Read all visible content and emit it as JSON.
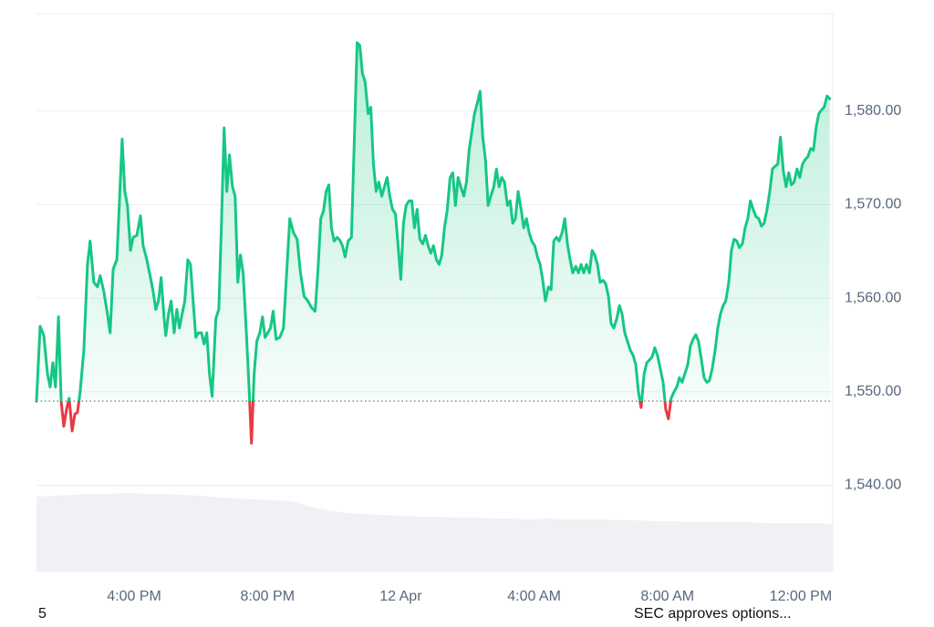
{
  "chart_data": {
    "type": "line",
    "annotations": [
      "5",
      "SEC approves options..."
    ],
    "color": "#16c784",
    "negative_color": "#ea3943",
    "baseline": 1549.0,
    "grid": true,
    "xlim": [
      -10.93,
      12.96
    ],
    "ylim": [
      1530.7,
      1590.4
    ],
    "xticks": [
      {
        "value": -8,
        "label": "4:00 PM"
      },
      {
        "value": -4,
        "label": "8:00 PM"
      },
      {
        "value": 0,
        "label": "12 Apr"
      },
      {
        "value": 4,
        "label": "4:00 AM"
      },
      {
        "value": 8,
        "label": "8:00 AM"
      },
      {
        "value": 12,
        "label": "12:00 PM"
      }
    ],
    "yticks": [
      {
        "value": 1540,
        "label": "1,540.00"
      },
      {
        "value": 1550,
        "label": "1,550.00"
      },
      {
        "value": 1560,
        "label": "1,560.00"
      },
      {
        "value": 1570,
        "label": "1,570.00"
      },
      {
        "value": 1580,
        "label": "1,580.00"
      }
    ],
    "x": [
      -10.93,
      -10.82,
      -10.71,
      -10.6,
      -10.52,
      -10.44,
      -10.36,
      -10.27,
      -10.19,
      -10.11,
      -10.03,
      -9.95,
      -9.86,
      -9.78,
      -9.7,
      -9.62,
      -9.51,
      -9.4,
      -9.32,
      -9.21,
      -9.1,
      -9.02,
      -8.91,
      -8.8,
      -8.72,
      -8.63,
      -8.52,
      -8.44,
      -8.36,
      -8.28,
      -8.2,
      -8.11,
      -8.03,
      -7.92,
      -7.81,
      -7.73,
      -7.62,
      -7.51,
      -7.43,
      -7.35,
      -7.27,
      -7.19,
      -7.1,
      -7.05,
      -6.97,
      -6.89,
      -6.8,
      -6.72,
      -6.64,
      -6.56,
      -6.48,
      -6.39,
      -6.31,
      -6.23,
      -6.15,
      -6.07,
      -5.98,
      -5.9,
      -5.82,
      -5.74,
      -5.66,
      -5.55,
      -5.46,
      -5.38,
      -5.3,
      -5.22,
      -5.14,
      -5.05,
      -4.97,
      -4.89,
      -4.81,
      -4.73,
      -4.64,
      -4.56,
      -4.48,
      -4.4,
      -4.32,
      -4.23,
      -4.15,
      -4.07,
      -3.91,
      -3.83,
      -3.74,
      -3.63,
      -3.52,
      -3.44,
      -3.33,
      -3.22,
      -3.11,
      -3.01,
      -2.9,
      -2.79,
      -2.68,
      -2.57,
      -2.49,
      -2.4,
      -2.32,
      -2.24,
      -2.16,
      -2.08,
      -2.0,
      -1.91,
      -1.83,
      -1.75,
      -1.67,
      -1.58,
      -1.48,
      -1.39,
      -1.31,
      -1.23,
      -1.15,
      -1.07,
      -0.98,
      -0.9,
      -0.82,
      -0.74,
      -0.66,
      -0.57,
      -0.49,
      -0.41,
      -0.33,
      -0.25,
      -0.16,
      -0.08,
      0.0,
      0.08,
      0.16,
      0.25,
      0.33,
      0.41,
      0.49,
      0.57,
      0.66,
      0.74,
      0.82,
      0.9,
      0.98,
      1.07,
      1.15,
      1.23,
      1.31,
      1.39,
      1.48,
      1.56,
      1.64,
      1.72,
      1.8,
      1.89,
      1.97,
      2.05,
      2.13,
      2.21,
      2.3,
      2.38,
      2.46,
      2.54,
      2.62,
      2.7,
      2.79,
      2.87,
      2.95,
      3.03,
      3.11,
      3.2,
      3.28,
      3.36,
      3.44,
      3.52,
      3.61,
      3.69,
      3.77,
      3.85,
      3.93,
      4.02,
      4.1,
      4.18,
      4.26,
      4.34,
      4.43,
      4.51,
      4.59,
      4.67,
      4.75,
      4.84,
      4.92,
      5.0,
      5.08,
      5.16,
      5.25,
      5.33,
      5.41,
      5.49,
      5.57,
      5.66,
      5.74,
      5.82,
      5.9,
      5.98,
      6.07,
      6.15,
      6.23,
      6.31,
      6.39,
      6.48,
      6.56,
      6.64,
      6.72,
      6.8,
      6.89,
      6.97,
      7.05,
      7.13,
      7.21,
      7.3,
      7.38,
      7.46,
      7.54,
      7.62,
      7.7,
      7.79,
      7.87,
      7.95,
      8.03,
      8.11,
      8.2,
      8.28,
      8.36,
      8.44,
      8.52,
      8.61,
      8.69,
      8.77,
      8.85,
      8.93,
      9.02,
      9.1,
      9.18,
      9.26,
      9.34,
      9.43,
      9.51,
      9.59,
      9.67,
      9.75,
      9.84,
      9.92,
      10.0,
      10.08,
      10.16,
      10.25,
      10.33,
      10.41,
      10.49,
      10.57,
      10.66,
      10.74,
      10.82,
      10.9,
      10.98,
      11.07,
      11.15,
      11.23,
      11.31,
      11.39,
      11.48,
      11.56,
      11.64,
      11.72,
      11.8,
      11.89,
      11.97,
      12.05,
      12.13,
      12.21,
      12.3,
      12.38,
      12.46,
      12.54,
      12.62,
      12.7,
      12.79,
      12.87
    ],
    "values": [
      1549.0,
      1557.0,
      1556.0,
      1551.9,
      1550.5,
      1553.1,
      1550.5,
      1558.0,
      1549.0,
      1546.3,
      1548.1,
      1549.3,
      1545.8,
      1547.6,
      1547.8,
      1550.0,
      1554.4,
      1563.6,
      1566.1,
      1561.7,
      1561.2,
      1562.4,
      1560.7,
      1558.3,
      1556.3,
      1563.1,
      1564.1,
      1570.4,
      1577.0,
      1571.4,
      1569.9,
      1565.1,
      1566.5,
      1566.7,
      1568.8,
      1565.6,
      1564.1,
      1562.2,
      1560.7,
      1558.8,
      1559.7,
      1562.2,
      1557.8,
      1556.0,
      1558.3,
      1559.7,
      1556.3,
      1558.8,
      1556.8,
      1558.3,
      1559.7,
      1564.1,
      1563.6,
      1559.7,
      1555.8,
      1556.3,
      1556.3,
      1555.1,
      1556.3,
      1551.9,
      1549.5,
      1557.8,
      1558.8,
      1568.0,
      1578.2,
      1571.4,
      1575.3,
      1571.9,
      1570.9,
      1561.7,
      1564.6,
      1562.7,
      1556.8,
      1551.0,
      1544.5,
      1551.9,
      1555.4,
      1556.3,
      1558.0,
      1555.8,
      1556.8,
      1558.6,
      1555.6,
      1555.8,
      1556.8,
      1561.7,
      1568.5,
      1567.0,
      1566.3,
      1562.7,
      1560.2,
      1559.7,
      1559.0,
      1558.6,
      1562.7,
      1568.5,
      1569.3,
      1571.4,
      1572.1,
      1567.5,
      1566.1,
      1566.5,
      1566.2,
      1565.6,
      1564.4,
      1566.1,
      1566.5,
      1577.4,
      1587.3,
      1587.0,
      1584.0,
      1583.1,
      1579.7,
      1580.4,
      1574.3,
      1571.4,
      1572.4,
      1570.9,
      1571.9,
      1572.9,
      1570.9,
      1569.5,
      1569.0,
      1565.6,
      1562.0,
      1568.0,
      1569.9,
      1570.4,
      1570.4,
      1567.5,
      1569.5,
      1566.3,
      1565.8,
      1566.7,
      1565.6,
      1564.8,
      1565.6,
      1564.1,
      1563.6,
      1564.6,
      1567.5,
      1569.3,
      1572.9,
      1573.4,
      1569.9,
      1572.9,
      1571.9,
      1570.9,
      1572.4,
      1575.8,
      1577.7,
      1579.7,
      1580.9,
      1582.1,
      1577.2,
      1574.8,
      1569.9,
      1570.9,
      1571.9,
      1573.8,
      1571.9,
      1572.9,
      1572.4,
      1569.9,
      1570.4,
      1568.0,
      1568.5,
      1571.4,
      1569.5,
      1567.5,
      1568.5,
      1567.0,
      1566.1,
      1565.6,
      1564.4,
      1563.6,
      1561.9,
      1559.7,
      1561.2,
      1560.9,
      1566.1,
      1566.5,
      1566.1,
      1567.0,
      1568.5,
      1565.8,
      1564.1,
      1562.7,
      1563.4,
      1562.7,
      1563.6,
      1562.7,
      1563.6,
      1562.7,
      1565.1,
      1564.6,
      1563.6,
      1561.7,
      1561.9,
      1561.5,
      1560.2,
      1557.3,
      1556.8,
      1557.8,
      1559.2,
      1558.3,
      1556.3,
      1555.4,
      1554.4,
      1553.9,
      1552.9,
      1550.0,
      1548.3,
      1551.9,
      1553.1,
      1553.4,
      1553.7,
      1554.7,
      1553.9,
      1552.4,
      1551.0,
      1548.1,
      1547.1,
      1549.3,
      1550.0,
      1550.5,
      1551.5,
      1551.0,
      1551.9,
      1552.9,
      1554.9,
      1555.6,
      1556.1,
      1555.4,
      1553.4,
      1551.5,
      1551.0,
      1551.2,
      1552.4,
      1554.4,
      1556.8,
      1558.3,
      1559.2,
      1559.7,
      1561.7,
      1565.1,
      1566.3,
      1566.1,
      1565.4,
      1565.8,
      1567.5,
      1568.5,
      1570.4,
      1569.5,
      1568.7,
      1568.5,
      1567.7,
      1568.0,
      1569.3,
      1571.4,
      1573.8,
      1574.1,
      1574.3,
      1577.2,
      1573.5,
      1571.9,
      1573.4,
      1572.1,
      1572.4,
      1573.8,
      1572.9,
      1574.3,
      1574.8,
      1575.1,
      1576.0,
      1575.8,
      1578.2,
      1579.7,
      1580.1,
      1580.4,
      1581.6,
      1581.3
    ]
  }
}
